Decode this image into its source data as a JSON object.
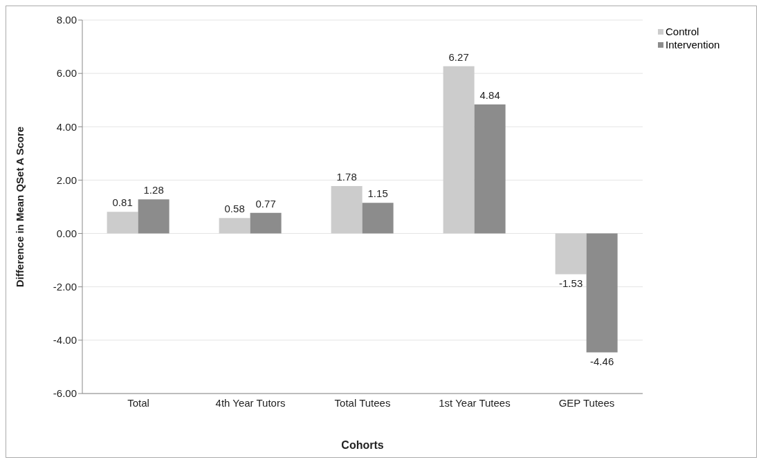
{
  "chart_data": {
    "type": "bar",
    "xlabel": "Cohorts",
    "ylabel": "Difference in Mean QSet A Score",
    "categories": [
      "Total",
      "4th Year Tutors",
      "Total Tutees",
      "1st Year Tutees",
      "GEP Tutees"
    ],
    "series": [
      {
        "name": "Control",
        "color": "#cccccc",
        "values": [
          0.81,
          0.58,
          1.78,
          6.27,
          -1.53
        ]
      },
      {
        "name": "Intervention",
        "color": "#8c8c8c",
        "values": [
          1.28,
          0.77,
          1.15,
          4.84,
          -4.46
        ]
      }
    ],
    "ylim": [
      -6,
      8
    ],
    "yticks": [
      {
        "value": -6,
        "label": "-6.00"
      },
      {
        "value": -4,
        "label": "-4.00"
      },
      {
        "value": -2,
        "label": "-2.00"
      },
      {
        "value": 0,
        "label": "0.00"
      },
      {
        "value": 2,
        "label": "2.00"
      },
      {
        "value": 4,
        "label": "4.00"
      },
      {
        "value": 6,
        "label": "6.00"
      },
      {
        "value": 8,
        "label": "8.00"
      }
    ],
    "grid": "y",
    "legend": "top right",
    "data_labels": true
  }
}
